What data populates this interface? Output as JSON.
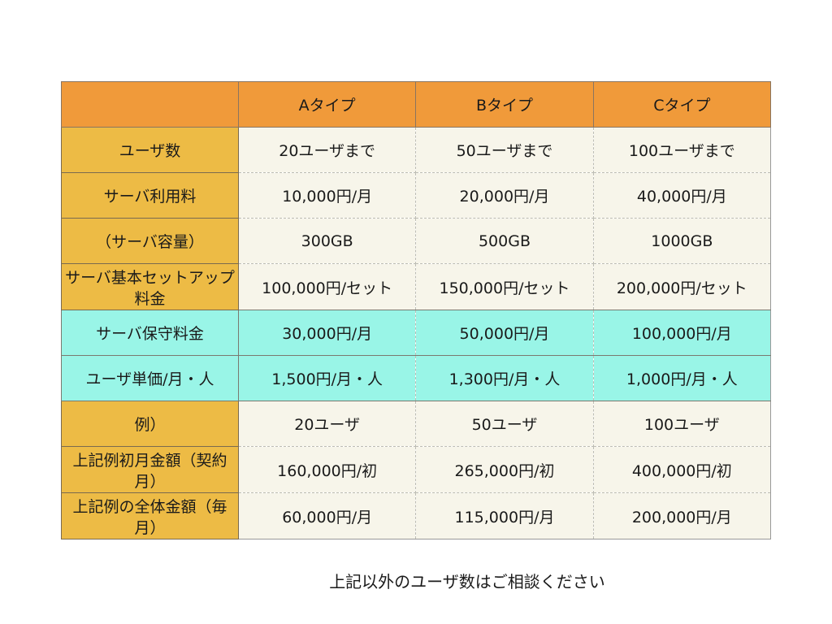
{
  "table": {
    "header": [
      "",
      "Aタイプ",
      "Bタイプ",
      "Cタイプ"
    ],
    "rows": [
      {
        "label": "ユーザ数",
        "values": [
          "20ユーザまで",
          "50ユーザまで",
          "100ユーザまで"
        ]
      },
      {
        "label": "サーバ利用料",
        "values": [
          "10,000円/月",
          "20,000円/月",
          "40,000円/月"
        ]
      },
      {
        "label": "（サーバ容量）",
        "values": [
          "300GB",
          "500GB",
          "1000GB"
        ]
      },
      {
        "label": "サーバ基本セットアップ料金",
        "values": [
          "100,000円/セット",
          "150,000円/セット",
          "200,000円/セット"
        ]
      },
      {
        "label": "サーバ保守料金",
        "values": [
          "30,000円/月",
          "50,000円/月",
          "100,000円/月"
        ]
      },
      {
        "label": "ユーザ単価/月・人",
        "values": [
          "1,500円/月・人",
          "1,300円/月・人",
          "1,000円/月・人"
        ]
      },
      {
        "label": "例）",
        "values": [
          "20ユーザ",
          "50ユーザ",
          "100ユーザ"
        ]
      },
      {
        "label": "上記例初月金額（契約月）",
        "values": [
          "160,000円/初",
          "265,000円/初",
          "400,000円/初"
        ]
      },
      {
        "label": "上記例の全体金額（毎月）",
        "values": [
          "60,000円/月",
          "115,000円/月",
          "200,000円/月"
        ]
      }
    ]
  },
  "note": "上記以外のユーザ数はご相談ください",
  "colors": {
    "header": "#F09A3A",
    "label": "#EDBB45",
    "cell": "#F7F5EA",
    "highlight": "#99F5E7"
  }
}
